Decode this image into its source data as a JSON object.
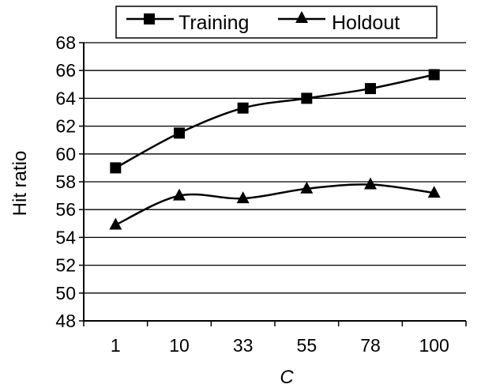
{
  "chart_data": {
    "type": "line",
    "categories": [
      "1",
      "10",
      "33",
      "55",
      "78",
      "100"
    ],
    "series": [
      {
        "name": "Training",
        "marker": "square",
        "values": [
          59.0,
          61.5,
          63.3,
          64.0,
          64.7,
          65.7
        ]
      },
      {
        "name": "Holdout",
        "marker": "triangle",
        "values": [
          54.9,
          57.0,
          56.8,
          57.5,
          57.8,
          57.2
        ]
      }
    ],
    "xlabel": "C",
    "ylabel": "Hit ratio",
    "ylim": [
      48,
      68
    ],
    "yticks": [
      48,
      50,
      52,
      54,
      56,
      58,
      60,
      62,
      64,
      66,
      68
    ],
    "grid": true,
    "legend": "top",
    "colors": {
      "line": "#000000",
      "grid": "#000000",
      "background": "#ffffff"
    }
  }
}
